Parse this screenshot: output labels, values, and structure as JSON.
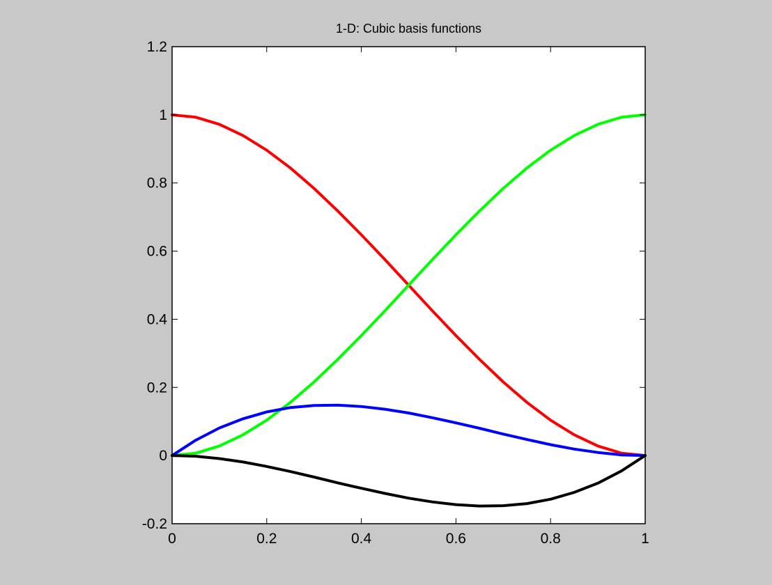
{
  "window": {
    "background": "#c8c8c8"
  },
  "chart_data": {
    "type": "line",
    "title": "1-D: Cubic basis functions",
    "xlabel": "",
    "ylabel": "",
    "xlim": [
      0,
      1
    ],
    "ylim": [
      -0.2,
      1.2
    ],
    "xticks": [
      "0",
      "0.2",
      "0.4",
      "0.6",
      "0.8",
      "1"
    ],
    "yticks": [
      "-0.2",
      "0",
      "0.2",
      "0.4",
      "0.6",
      "0.8",
      "1",
      "1.2"
    ],
    "grid": false,
    "legend": null,
    "x": [
      0,
      0.05,
      0.1,
      0.15,
      0.2,
      0.25,
      0.3,
      0.35,
      0.4,
      0.45,
      0.5,
      0.55,
      0.6,
      0.65,
      0.7,
      0.75,
      0.8,
      0.85,
      0.9,
      0.95,
      1
    ],
    "series": [
      {
        "color": "#ff0000",
        "values": [
          1,
          0.993,
          0.972,
          0.939,
          0.896,
          0.844,
          0.784,
          0.718,
          0.648,
          0.575,
          0.5,
          0.425,
          0.352,
          0.282,
          0.216,
          0.156,
          0.104,
          0.061,
          0.028,
          0.007,
          0
        ]
      },
      {
        "color": "#00ff00",
        "values": [
          0,
          0.007,
          0.028,
          0.061,
          0.104,
          0.156,
          0.216,
          0.282,
          0.352,
          0.425,
          0.5,
          0.575,
          0.648,
          0.718,
          0.784,
          0.844,
          0.896,
          0.939,
          0.972,
          0.993,
          1
        ]
      },
      {
        "color": "#0000ff",
        "values": [
          0,
          0.045,
          0.081,
          0.108,
          0.128,
          0.141,
          0.147,
          0.148,
          0.144,
          0.136,
          0.125,
          0.111,
          0.096,
          0.08,
          0.063,
          0.047,
          0.032,
          0.019,
          0.009,
          0.002,
          0
        ]
      },
      {
        "color": "#000000",
        "values": [
          0,
          -0.002,
          -0.009,
          -0.019,
          -0.032,
          -0.047,
          -0.063,
          -0.08,
          -0.096,
          -0.111,
          -0.125,
          -0.136,
          -0.144,
          -0.148,
          -0.147,
          -0.141,
          -0.128,
          -0.108,
          -0.081,
          -0.045,
          0
        ]
      }
    ]
  }
}
